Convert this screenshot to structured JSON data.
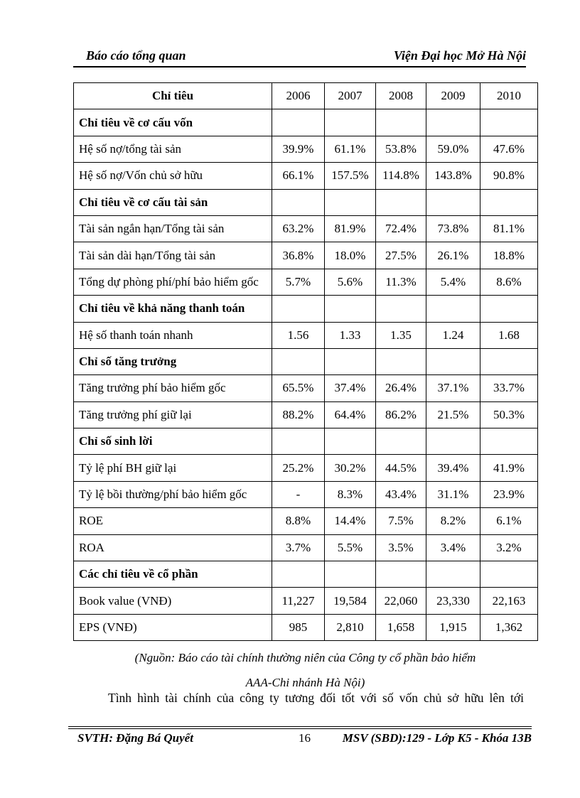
{
  "page_header": {
    "left": "Báo cáo tổng quan",
    "right": "Viện Đại học Mở Hà Nội"
  },
  "table": {
    "header": [
      "Chỉ tiêu",
      "2006",
      "2007",
      "2008",
      "2009",
      "2010"
    ],
    "rows": [
      {
        "type": "section",
        "label": "Chỉ tiêu về cơ cấu vốn"
      },
      {
        "type": "data",
        "label": "Hệ số nợ/tổng tài sản",
        "values": [
          "39.9%",
          "61.1%",
          "53.8%",
          "59.0%",
          "47.6%"
        ]
      },
      {
        "type": "data",
        "label": "Hệ số nợ/Vốn chủ sở hữu",
        "values": [
          "66.1%",
          "157.5%",
          "114.8%",
          "143.8%",
          "90.8%"
        ]
      },
      {
        "type": "section",
        "label": "Chỉ tiêu về cơ cấu tài sản"
      },
      {
        "type": "data",
        "label": "Tài sản ngắn hạn/Tổng tài sản",
        "values": [
          "63.2%",
          "81.9%",
          "72.4%",
          "73.8%",
          "81.1%"
        ]
      },
      {
        "type": "data",
        "label": "Tài sản dài hạn/Tổng tài sản",
        "values": [
          "36.8%",
          "18.0%",
          "27.5%",
          "26.1%",
          "18.8%"
        ]
      },
      {
        "type": "data",
        "label": "Tổng dự phòng phí/phí bảo hiểm gốc",
        "values": [
          "5.7%",
          "5.6%",
          "11.3%",
          "5.4%",
          "8.6%"
        ]
      },
      {
        "type": "section",
        "label": "Chỉ tiêu về khả năng thanh toán"
      },
      {
        "type": "data",
        "label": "Hệ số thanh toán nhanh",
        "values": [
          "1.56",
          "1.33",
          "1.35",
          "1.24",
          "1.68"
        ]
      },
      {
        "type": "section",
        "label": "Chỉ số tăng trưởng"
      },
      {
        "type": "data",
        "label": "Tăng trưởng phí bảo hiểm gốc",
        "values": [
          "65.5%",
          "37.4%",
          "26.4%",
          "37.1%",
          "33.7%"
        ]
      },
      {
        "type": "data",
        "label": "Tăng trưởng phí giữ lại",
        "values": [
          "88.2%",
          "64.4%",
          "86.2%",
          "21.5%",
          "50.3%"
        ]
      },
      {
        "type": "section",
        "label": "Chỉ số sinh lời"
      },
      {
        "type": "data",
        "label": "Tỷ lệ phí BH giữ lại",
        "values": [
          "25.2%",
          "30.2%",
          "44.5%",
          "39.4%",
          "41.9%"
        ]
      },
      {
        "type": "data",
        "label": "Tỷ lệ bồi thường/phí  bảo hiểm gốc",
        "values": [
          "-",
          "8.3%",
          "43.4%",
          "31.1%",
          "23.9%"
        ]
      },
      {
        "type": "data",
        "label": "ROE",
        "values": [
          "8.8%",
          "14.4%",
          "7.5%",
          "8.2%",
          "6.1%"
        ]
      },
      {
        "type": "data",
        "label": "ROA",
        "values": [
          "3.7%",
          "5.5%",
          "3.5%",
          "3.4%",
          "3.2%"
        ]
      },
      {
        "type": "section",
        "label": "Các chỉ tiêu về cổ phần"
      },
      {
        "type": "data",
        "label": "Book value (VNĐ)",
        "values": [
          "11,227",
          "19,584",
          "22,060",
          "23,330",
          "22,163"
        ]
      },
      {
        "type": "data",
        "label": "EPS (VNĐ)",
        "values": [
          "985",
          "2,810",
          "1,658",
          "1,915",
          "1,362"
        ]
      }
    ]
  },
  "source_note": {
    "line1": "(Nguồn: Báo cáo tài chính thường niên của Công ty cổ phần bảo hiểm",
    "line2": "AAA-Chi nhánh Hà Nội)"
  },
  "paragraph": "Tình hình tài chính của công ty tương đối tốt với số vốn chủ sở hữu lên tới",
  "footer": {
    "left": "SVTH: Đặng Bá Quyết",
    "page_number": "16",
    "right": "MSV (SBD):129 - Lớp K5 - Khóa 13B"
  }
}
